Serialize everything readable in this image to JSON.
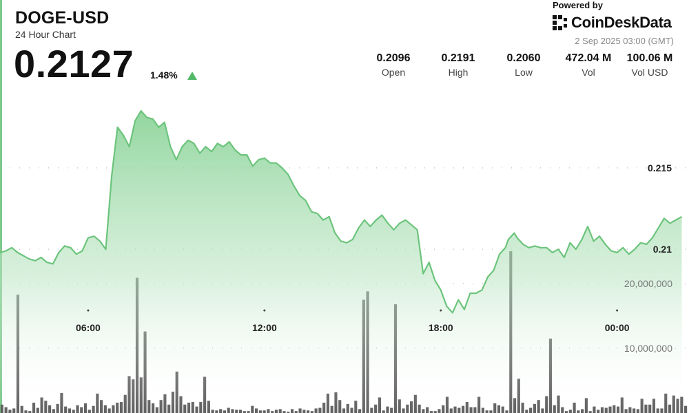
{
  "header": {
    "symbol": "DOGE-USD",
    "subtitle": "24 Hour Chart",
    "price": "0.2127",
    "change_pct": "1.48%"
  },
  "branding": {
    "powered_by": "Powered by",
    "brand_name": "CoinDeskData",
    "datetime": "2 Sep 2025 03:00 (GMT)"
  },
  "stats": [
    {
      "value": "0.2096",
      "label": "Open"
    },
    {
      "value": "0.2191",
      "label": "High"
    },
    {
      "value": "0.2060",
      "label": "Low"
    },
    {
      "value": "472.04 M",
      "label": "Vol"
    },
    {
      "value": "100.06 M",
      "label": "Vol USD"
    }
  ],
  "colors": {
    "line": "#6cc47c",
    "area_top": "#7fcf8e",
    "volume_bar": "#555555",
    "up_arrow": "#52b968"
  },
  "chart_data": {
    "type": "line",
    "title": "DOGE-USD",
    "x_ticks": [
      "06:00",
      "12:00",
      "18:00",
      "00:00"
    ],
    "x_tick_hours": [
      3.0,
      9.0,
      15.0,
      21.0
    ],
    "price_axis": {
      "ticks": [
        0.21,
        0.215
      ],
      "tick_labels": [
        "0.21",
        "0.215"
      ],
      "ylim": [
        0.2062,
        0.2199
      ]
    },
    "volume_axis": {
      "ticks": [
        10000000,
        20000000
      ],
      "tick_labels": [
        "10,000,000",
        "20,000,000"
      ],
      "ylim": [
        0,
        20000000
      ]
    },
    "price_series": {
      "name": "Price",
      "hours_since_start": [
        0,
        0.2,
        0.4,
        0.6,
        0.8,
        1.0,
        1.2,
        1.4,
        1.6,
        1.8,
        2.0,
        2.2,
        2.4,
        2.6,
        2.8,
        3.0,
        3.2,
        3.4,
        3.6,
        3.8,
        4.0,
        4.2,
        4.4,
        4.6,
        4.8,
        5.0,
        5.2,
        5.4,
        5.6,
        5.8,
        6.0,
        6.2,
        6.4,
        6.6,
        6.8,
        7.0,
        7.2,
        7.4,
        7.6,
        7.8,
        8.0,
        8.2,
        8.4,
        8.6,
        8.8,
        9.0,
        9.2,
        9.4,
        9.6,
        9.8,
        10.0,
        10.2,
        10.4,
        10.6,
        10.8,
        11.0,
        11.2,
        11.4,
        11.6,
        11.8,
        12.0,
        12.2,
        12.4,
        12.6,
        12.8,
        13.0,
        13.2,
        13.4,
        13.6,
        13.8,
        14.0,
        14.2,
        14.4,
        14.6,
        14.8,
        15.0,
        15.2,
        15.4,
        15.6,
        15.8,
        16.0,
        16.2,
        16.4,
        16.6,
        16.8,
        17.0,
        17.2,
        17.3,
        17.4,
        17.5,
        17.6,
        17.8,
        18.0,
        18.2,
        18.4,
        18.6,
        18.8,
        19.0,
        19.2,
        19.4,
        19.6,
        19.8,
        20.0,
        20.2,
        20.4,
        20.6,
        20.8,
        21.0,
        21.2,
        21.4,
        21.6,
        21.8,
        22.0,
        22.2,
        22.4,
        22.6,
        22.8,
        23.0,
        23.2,
        23.4
      ],
      "values": [
        0.2098,
        0.2099,
        0.2101,
        0.2098,
        0.2096,
        0.2094,
        0.2093,
        0.2095,
        0.2092,
        0.2091,
        0.2098,
        0.2102,
        0.2101,
        0.2097,
        0.2099,
        0.2107,
        0.2108,
        0.2105,
        0.21,
        0.2145,
        0.2175,
        0.217,
        0.2163,
        0.2179,
        0.2185,
        0.2181,
        0.218,
        0.2175,
        0.2178,
        0.2163,
        0.2155,
        0.2163,
        0.2167,
        0.2165,
        0.2159,
        0.2163,
        0.216,
        0.2165,
        0.2163,
        0.2166,
        0.2161,
        0.2158,
        0.2158,
        0.2151,
        0.2155,
        0.2156,
        0.2153,
        0.2153,
        0.215,
        0.2146,
        0.2139,
        0.2133,
        0.213,
        0.2123,
        0.2122,
        0.2118,
        0.212,
        0.211,
        0.2105,
        0.2104,
        0.2106,
        0.2113,
        0.2118,
        0.2114,
        0.2118,
        0.2121,
        0.2116,
        0.2112,
        0.2116,
        0.2118,
        0.2115,
        0.2112,
        0.2085,
        0.2092,
        0.2081,
        0.2075,
        0.2065,
        0.2061,
        0.2069,
        0.2063,
        0.2073,
        0.2073,
        0.2075,
        0.2083,
        0.2087,
        0.2097,
        0.2101,
        0.2106,
        0.2108,
        0.211,
        0.2107,
        0.2103,
        0.2101,
        0.2102,
        0.2101,
        0.2101,
        0.2098,
        0.21,
        0.2095,
        0.2104,
        0.21,
        0.2106,
        0.2114,
        0.2105,
        0.2108,
        0.2103,
        0.2099,
        0.2098,
        0.2101,
        0.2097,
        0.21,
        0.2104,
        0.2103,
        0.2107,
        0.2113,
        0.2119,
        0.2116,
        0.2118,
        0.212
      ]
    },
    "volume_series": {
      "name": "Volume",
      "values": [
        1300000,
        900000,
        500000,
        700000,
        18300000,
        1100000,
        400000,
        300000,
        1600000,
        800000,
        2400000,
        1900000,
        1200000,
        600000,
        1400000,
        3100000,
        1000000,
        700000,
        500000,
        1200000,
        900000,
        1500000,
        500000,
        1100000,
        3000000,
        2000000,
        1200000,
        700000,
        1200000,
        1600000,
        1700000,
        2800000,
        5700000,
        5200000,
        20900000,
        5500000,
        12600000,
        2000000,
        1500000,
        900000,
        2000000,
        2900000,
        1300000,
        3300000,
        6400000,
        2600000,
        1300000,
        1600000,
        1700000,
        1000000,
        1700000,
        5600000,
        1900000,
        500000,
        400000,
        600000,
        400000,
        800000,
        600000,
        500000,
        500000,
        300000,
        300000,
        1100000,
        700000,
        400000,
        400000,
        600000,
        300000,
        500000,
        600000,
        300000,
        200000,
        600000,
        300000,
        700000,
        500000,
        400000,
        300000,
        700000,
        800000,
        1600000,
        3000000,
        1100000,
        3200000,
        2000000,
        700000,
        1400000,
        800000,
        1900000,
        600000,
        17500000,
        18800000,
        800000,
        1300000,
        2400000,
        400000,
        1000000,
        800000,
        16800000,
        2100000,
        700000,
        1300000,
        1800000,
        2800000,
        1300000,
        600000,
        900000,
        300000,
        300000,
        600000,
        1200000,
        2500000,
        700000,
        1000000,
        800000,
        1100000,
        1700000,
        900000,
        900000,
        2500000,
        800000,
        400000,
        400000,
        1500000,
        1200000,
        1000000,
        400000,
        25000000,
        2300000,
        5300000,
        1600000,
        500000,
        800000,
        1400000,
        2000000,
        700000,
        2600000,
        11500000,
        1200000,
        2700000,
        900000,
        300000,
        500000,
        1600000,
        400000,
        600000,
        2300000,
        300000,
        1000000,
        500000,
        900000,
        800000,
        1000000,
        1200000,
        1000000,
        2400000,
        600000,
        900000,
        700000,
        600000,
        2200000,
        1300000,
        1300000,
        2200000,
        700000,
        700000,
        3000000,
        1300000,
        2700000,
        2200000,
        2500000,
        1100000
      ]
    }
  }
}
